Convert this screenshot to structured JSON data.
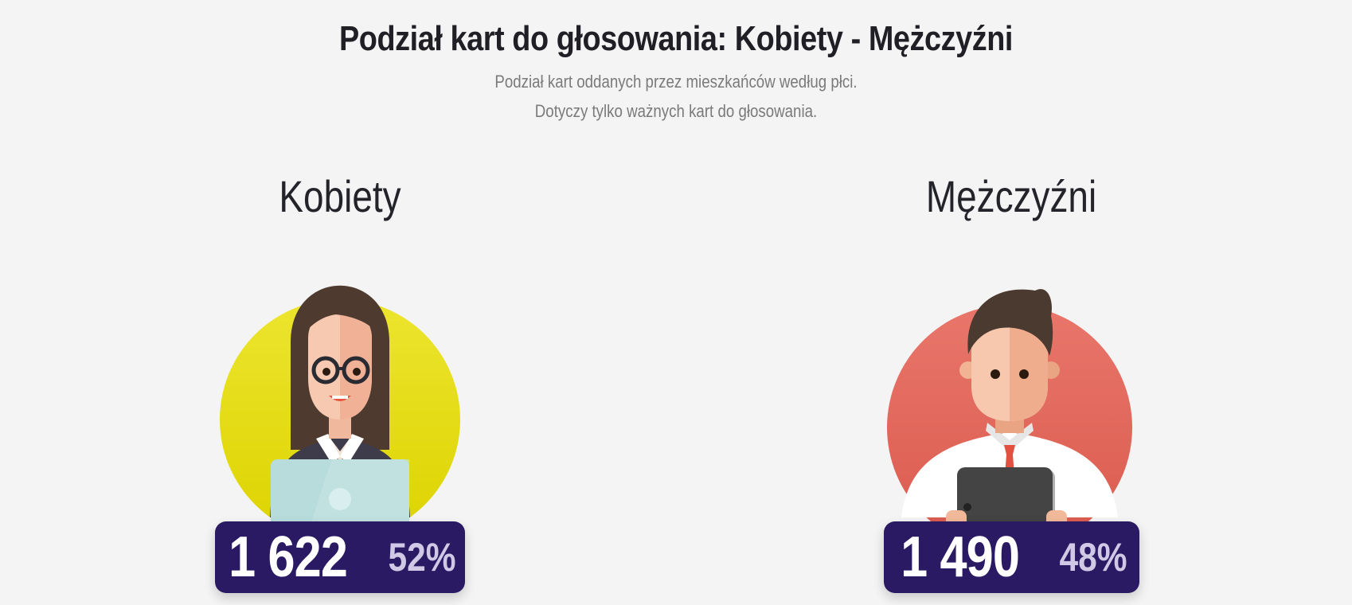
{
  "header": {
    "title": "Podział kart do głosowania: Kobiety - Mężczyźni",
    "subtitle_line1": "Podział kart oddanych przez mieszkańców według płci.",
    "subtitle_line2": "Dotyczy tylko ważnych kart do głosowania."
  },
  "groups": [
    {
      "label": "Kobiety",
      "count": "1 622",
      "percent": "52%",
      "avatar_icon": "woman-with-laptop-icon",
      "circle_color": "#e6e01a"
    },
    {
      "label": "Mężczyźni",
      "count": "1 490",
      "percent": "48%",
      "avatar_icon": "man-with-tablet-icon",
      "circle_color": "#e46a5e"
    }
  ],
  "colors": {
    "badge_background": "#2a1a64",
    "badge_percent": "#cfc9e6",
    "background": "#f4f4f4",
    "title_text": "#1f1f25",
    "subtitle_text": "#7a7a7a"
  }
}
